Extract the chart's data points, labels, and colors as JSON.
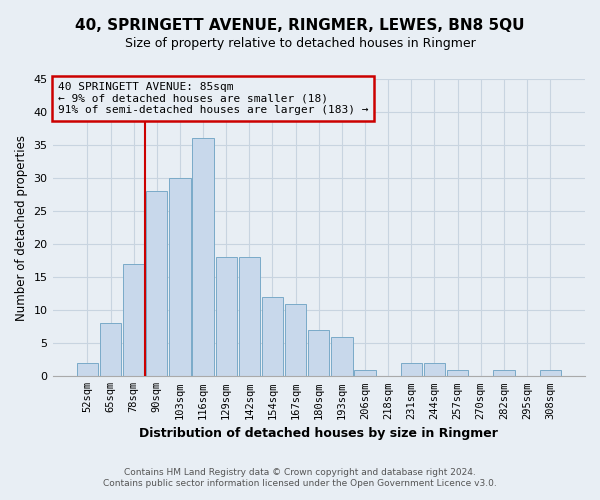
{
  "title": "40, SPRINGETT AVENUE, RINGMER, LEWES, BN8 5QU",
  "subtitle": "Size of property relative to detached houses in Ringmer",
  "xlabel": "Distribution of detached houses by size in Ringmer",
  "ylabel": "Number of detached properties",
  "bar_labels": [
    "52sqm",
    "65sqm",
    "78sqm",
    "90sqm",
    "103sqm",
    "116sqm",
    "129sqm",
    "142sqm",
    "154sqm",
    "167sqm",
    "180sqm",
    "193sqm",
    "206sqm",
    "218sqm",
    "231sqm",
    "244sqm",
    "257sqm",
    "270sqm",
    "282sqm",
    "295sqm",
    "308sqm"
  ],
  "bar_values": [
    2,
    8,
    17,
    28,
    30,
    36,
    18,
    18,
    12,
    11,
    7,
    6,
    1,
    0,
    2,
    2,
    1,
    0,
    1,
    0,
    1
  ],
  "bar_color": "#c8d8eb",
  "bar_edge_color": "#7aaac8",
  "annotation_title": "40 SPRINGETT AVENUE: 85sqm",
  "annotation_line1": "← 9% of detached houses are smaller (18)",
  "annotation_line2": "91% of semi-detached houses are larger (183) →",
  "annotation_box_edge": "#cc0000",
  "vline_color": "#cc0000",
  "ylim": [
    0,
    45
  ],
  "yticks": [
    0,
    5,
    10,
    15,
    20,
    25,
    30,
    35,
    40,
    45
  ],
  "footer_line1": "Contains HM Land Registry data © Crown copyright and database right 2024.",
  "footer_line2": "Contains public sector information licensed under the Open Government Licence v3.0.",
  "bg_color": "#e8eef4",
  "plot_bg_color": "#e8eef4",
  "grid_color": "#c8d4e0",
  "title_fontsize": 11,
  "subtitle_fontsize": 9
}
